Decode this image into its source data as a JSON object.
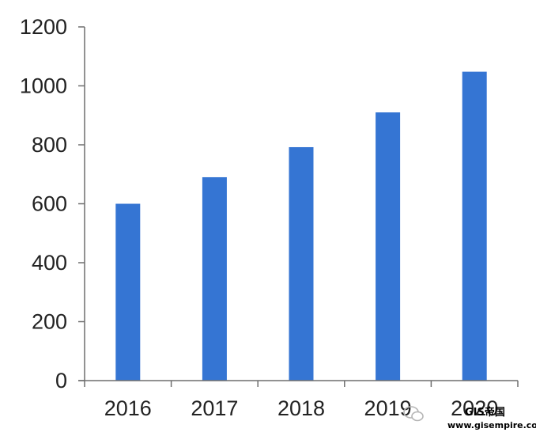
{
  "chart_data": {
    "type": "bar",
    "title": "",
    "xlabel": "",
    "ylabel": "",
    "categories": [
      "2016",
      "2017",
      "2018",
      "2019",
      "2020"
    ],
    "values": [
      600,
      690,
      792,
      910,
      1048
    ],
    "ylim": [
      0,
      1200
    ],
    "yticks": [
      0,
      200,
      400,
      600,
      800,
      1000,
      1200
    ],
    "bar_color": "#3575d3",
    "grid": false,
    "legend": "none"
  },
  "watermark": {
    "brand": "GIS帝国",
    "url": "www.gisempire.com"
  }
}
